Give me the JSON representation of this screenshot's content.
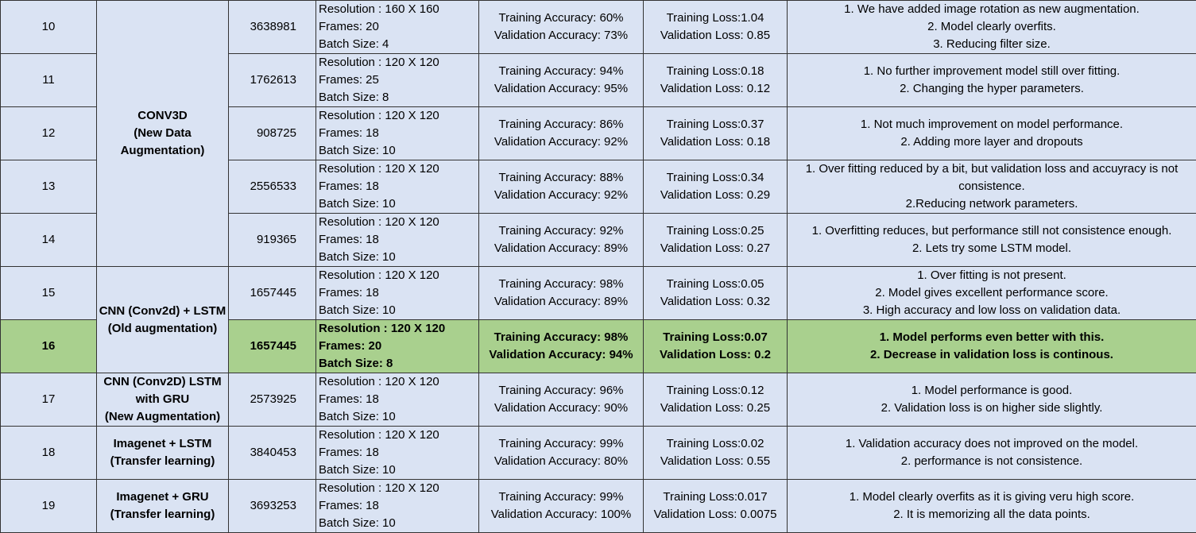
{
  "rows": [
    {
      "no": "10",
      "params": "3638981",
      "res": "Resolution : 160 X 160",
      "frames": "Frames: 20",
      "batch": "Batch Size: 4",
      "train_acc": "Training Accuracy: 60%",
      "val_acc": "Validation Accuracy: 73%",
      "train_loss": "Training Loss:1.04",
      "val_loss": "Validation Loss: 0.85",
      "obs": [
        "1. We have added image rotation as new augmentation.",
        "2. Model clearly overfits.",
        "3. Reducing filter size."
      ]
    },
    {
      "no": "11",
      "params": "1762613",
      "res": "Resolution : 120 X 120",
      "frames": "Frames: 25",
      "batch": "Batch Size: 8",
      "train_acc": "Training Accuracy: 94%",
      "val_acc": "Validation Accuracy: 95%",
      "train_loss": "Training Loss:0.18",
      "val_loss": "Validation Loss: 0.12",
      "obs": [
        "1. No further improvement model still over fitting.",
        "2. Changing the hyper parameters."
      ]
    },
    {
      "no": "12",
      "params": "908725",
      "res": "Resolution : 120 X 120",
      "frames": "Frames: 18",
      "batch": "Batch Size: 10",
      "train_acc": "Training Accuracy: 86%",
      "val_acc": "Validation Accuracy: 92%",
      "train_loss": "Training Loss:0.37",
      "val_loss": "Validation Loss: 0.18",
      "obs": [
        "1. Not much improvement on model performance.",
        "2. Adding more layer and dropouts"
      ]
    },
    {
      "no": "13",
      "params": "2556533",
      "res": "Resolution : 120 X 120",
      "frames": "Frames: 18",
      "batch": "Batch Size: 10",
      "train_acc": "Training Accuracy: 88%",
      "val_acc": "Validation Accuracy: 92%",
      "train_loss": "Training Loss:0.34",
      "val_loss": "Validation Loss: 0.29",
      "obs": [
        "1. Over fitting reduced by a bit, but validation loss and accuyracy is not consistence.",
        "2.Reducing network parameters."
      ]
    },
    {
      "no": "14",
      "params": "919365",
      "res": "Resolution : 120 X 120",
      "frames": "Frames: 18",
      "batch": "Batch Size: 10",
      "train_acc": "Training Accuracy: 92%",
      "val_acc": "Validation Accuracy: 89%",
      "train_loss": "Training Loss:0.25",
      "val_loss": "Validation Loss: 0.27",
      "obs": [
        "1. Overfitting reduces, but performance still not consistence enough.",
        "2. Lets try some LSTM model."
      ]
    },
    {
      "no": "15",
      "params": "1657445",
      "res": "Resolution : 120 X 120",
      "frames": "Frames: 18",
      "batch": "Batch Size: 10",
      "train_acc": "Training Accuracy: 98%",
      "val_acc": "Validation Accuracy: 89%",
      "train_loss": "Training Loss:0.05",
      "val_loss": "Validation Loss: 0.32",
      "obs": [
        "1. Over fitting is not present.",
        "2. Model gives excellent performance score.",
        "3. High accuracy and low loss on validation data."
      ]
    },
    {
      "no": "16",
      "params": "1657445",
      "res": "Resolution : 120 X 120",
      "frames": "Frames: 20",
      "batch": "Batch Size: 8",
      "train_acc": "Training Accuracy: 98%",
      "val_acc": "Validation Accuracy: 94%",
      "train_loss": "Training Loss:0.07",
      "val_loss": "Validation Loss: 0.2",
      "obs": [
        "1. Model performs even better with this.",
        "2. Decrease in validation loss is continous."
      ]
    },
    {
      "no": "17",
      "params": "2573925",
      "res": "Resolution : 120 X 120",
      "frames": "Frames: 18",
      "batch": "Batch Size: 10",
      "train_acc": "Training Accuracy: 96%",
      "val_acc": "Validation Accuracy: 90%",
      "train_loss": "Training Loss:0.12",
      "val_loss": "Validation Loss: 0.25",
      "obs": [
        "1. Model performance is good.",
        "2. Validation loss is on higher side slightly."
      ]
    },
    {
      "no": "18",
      "params": "3840453",
      "res": "Resolution : 120 X 120",
      "frames": "Frames: 18",
      "batch": "Batch Size: 10",
      "train_acc": "Training Accuracy: 99%",
      "val_acc": "Validation Accuracy: 80%",
      "train_loss": "Training Loss:0.02",
      "val_loss": "Validation Loss: 0.55",
      "obs": [
        "1. Validation accuracy does not improved on the model.",
        "2. performance is not consistence."
      ]
    },
    {
      "no": "19",
      "params": "3693253",
      "res": "Resolution : 120 X 120",
      "frames": "Frames: 18",
      "batch": "Batch Size: 10",
      "train_acc": "Training Accuracy: 99%",
      "val_acc": "Validation Accuracy: 100%",
      "train_loss": "Training Loss:0.017",
      "val_loss": "Validation Loss: 0.0075",
      "obs": [
        "1. Model clearly overfits as it is giving veru high score.",
        "2. It is memorizing all the data points."
      ]
    }
  ],
  "models": {
    "conv3d": [
      "CONV3D",
      "(New Data",
      "Augmentation)"
    ],
    "cnn_lstm": [
      "CNN (Conv2d) + LSTM",
      "(Old augmentation)"
    ],
    "cnn_gru": [
      "CNN (Conv2D) LSTM",
      "with GRU",
      "(New Augmentation)"
    ],
    "imagenet_lstm": [
      "Imagenet + LSTM",
      "(Transfer learning)"
    ],
    "imagenet_gru": [
      "Imagenet + GRU",
      "(Transfer learning)"
    ]
  },
  "colors": {
    "row_bg": "#dae3f3",
    "highlight_bg": "#a9d08e"
  }
}
